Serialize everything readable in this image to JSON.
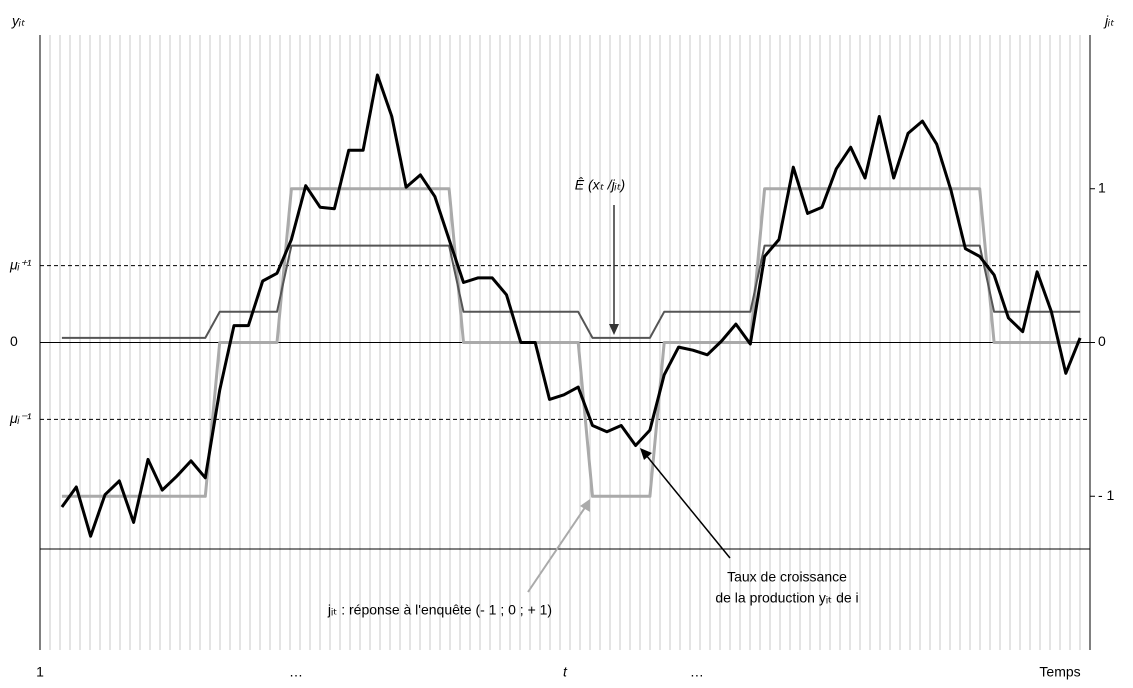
{
  "chart_data": {
    "type": "line",
    "y_label": "yᵢₜ",
    "y2_label": "jᵢₜ",
    "annotations": [
      "Ê (xₜ /jᵢₜ)",
      "Taux de croissance",
      "de la production yᵢₜ de i",
      "jᵢₜ : réponse à l'enquête (- 1 ; 0 ; + 1)"
    ],
    "x": [
      0,
      1,
      2,
      3,
      4,
      5,
      6,
      7,
      8,
      9,
      10,
      11,
      12,
      13,
      14,
      15,
      16,
      17,
      18,
      19,
      20,
      21,
      22,
      23,
      24,
      25,
      26,
      27,
      28,
      29,
      30,
      31,
      32,
      33,
      34,
      35,
      36,
      37,
      38,
      39,
      40,
      41,
      42,
      43,
      44,
      45,
      46,
      47,
      48,
      49,
      50,
      51,
      52,
      53,
      54,
      55,
      56,
      57,
      58,
      59,
      60,
      61,
      62,
      63,
      64,
      65,
      66,
      67,
      68,
      69,
      70,
      71
    ],
    "series": [
      {
        "color": "#000000",
        "values": [
          -1.07,
          -0.94,
          -1.26,
          -0.99,
          -0.9,
          -1.17,
          -0.76,
          -0.96,
          -0.87,
          -0.77,
          -0.88,
          -0.31,
          0.11,
          0.11,
          0.4,
          0.45,
          0.67,
          1.02,
          0.88,
          0.87,
          1.25,
          1.25,
          1.74,
          1.47,
          1.01,
          1.09,
          0.95,
          0.67,
          0.39,
          0.42,
          0.42,
          0.31,
          0,
          0,
          -0.37,
          -0.34,
          -0.29,
          -0.54,
          -0.58,
          -0.54,
          -0.67,
          -0.57,
          -0.21,
          -0.03,
          -0.05,
          -0.08,
          0.01,
          0.12,
          -0.01,
          0.56,
          0.67,
          1.14,
          0.84,
          0.88,
          1.13,
          1.27,
          1.07,
          1.47,
          1.07,
          1.36,
          1.44,
          1.29,
          0.99,
          0.61,
          0.56,
          0.44,
          0.16,
          0.07,
          0.46,
          0.2,
          -0.2,
          0.03
        ]
      },
      {
        "color": "#aaaaaa",
        "axis": "y2",
        "values": [
          -1,
          -1,
          -1,
          -1,
          -1,
          -1,
          -1,
          -1,
          -1,
          -1,
          -1,
          0,
          0,
          0,
          0,
          0,
          1,
          1,
          1,
          1,
          1,
          1,
          1,
          1,
          1,
          1,
          1,
          1,
          0,
          0,
          0,
          0,
          0,
          0,
          0,
          0,
          0,
          -1,
          -1,
          -1,
          -1,
          -1,
          0,
          0,
          0,
          0,
          0,
          0,
          0,
          1,
          1,
          1,
          1,
          1,
          1,
          1,
          1,
          1,
          1,
          1,
          1,
          1,
          1,
          1,
          1,
          0,
          0,
          0,
          0,
          0,
          0,
          0
        ]
      },
      {
        "color": "#555555",
        "axis": "y2",
        "values": [
          0.03,
          0.03,
          0.03,
          0.03,
          0.03,
          0.03,
          0.03,
          0.03,
          0.03,
          0.03,
          0.03,
          0.2,
          0.2,
          0.2,
          0.2,
          0.2,
          0.63,
          0.63,
          0.63,
          0.63,
          0.63,
          0.63,
          0.63,
          0.63,
          0.63,
          0.63,
          0.63,
          0.63,
          0.2,
          0.2,
          0.2,
          0.2,
          0.2,
          0.2,
          0.2,
          0.2,
          0.2,
          0.03,
          0.03,
          0.03,
          0.03,
          0.03,
          0.2,
          0.2,
          0.2,
          0.2,
          0.2,
          0.2,
          0.2,
          0.63,
          0.63,
          0.63,
          0.63,
          0.63,
          0.63,
          0.63,
          0.63,
          0.63,
          0.63,
          0.63,
          0.63,
          0.63,
          0.63,
          0.63,
          0.63,
          0.2,
          0.2,
          0.2,
          0.2,
          0.2,
          0.2,
          0.2
        ]
      }
    ],
    "xlim": [
      -1.53,
      71.69
    ],
    "xticks": [
      {
        "value": -1.53,
        "label": "1"
      },
      {
        "value": 16.32,
        "label": "…"
      },
      {
        "value": 35.08,
        "label": "t"
      },
      {
        "value": 44.28,
        "label": "…"
      },
      {
        "value": 69.6,
        "label": "Temps"
      }
    ],
    "ylim": [
      -2,
      2
    ],
    "yticks": [
      {
        "value": 0.5,
        "label": "μᵢ⁺¹"
      },
      0,
      {
        "value": -0.5,
        "label": "μᵢ⁻¹"
      }
    ],
    "y2lim": [
      -2,
      2
    ],
    "y2ticks": [
      1,
      0,
      {
        "value": -1,
        "label": "- 1"
      }
    ]
  }
}
